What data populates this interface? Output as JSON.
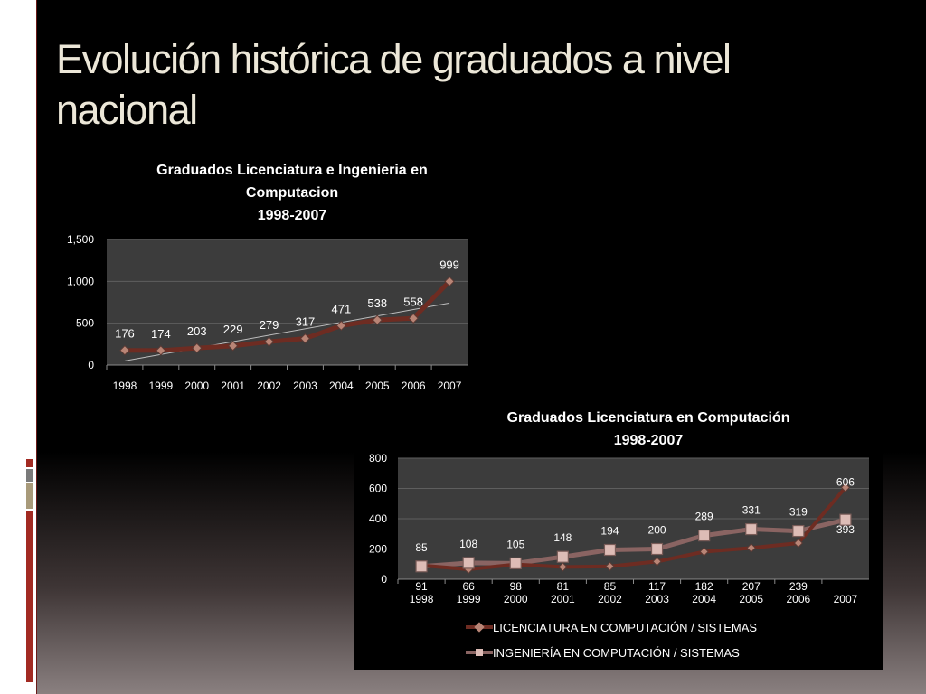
{
  "slide": {
    "title": "Evolución histórica de graduados a nivel nacional"
  },
  "colors": {
    "plot_bg": "#3c3c3c",
    "gridline": "#5e5e5e",
    "axis_text": "#ffffff",
    "series_dark": "#6e2c22",
    "series_light": "#8a6462",
    "marker_dark": "#b98576",
    "marker_light": "#ddbcb6",
    "trendline": "#bdbdbd",
    "accent_red": "#a22a22",
    "accent_gray": "#7a7a7a",
    "accent_tan": "#a89a7a"
  },
  "chart_data": [
    {
      "type": "line",
      "title_lines": [
        "Graduados Licenciatura e Ingenieria en",
        "Computacion",
        "1998-2007"
      ],
      "categories": [
        "1998",
        "1999",
        "2000",
        "2001",
        "2002",
        "2003",
        "2004",
        "2005",
        "2006",
        "2007"
      ],
      "series": [
        {
          "name": "",
          "values": [
            176,
            174,
            203,
            229,
            279,
            317,
            471,
            538,
            558,
            999
          ]
        }
      ],
      "trendline": {
        "type": "linear",
        "from": 50,
        "to": 740
      },
      "yticks": [
        "0",
        "500",
        "1,000",
        "1,500"
      ],
      "ylim": [
        0,
        1500
      ],
      "data_labels": [
        "176",
        "174",
        "203",
        "229",
        "279",
        "317",
        "471",
        "538",
        "558",
        "999"
      ],
      "grid": true,
      "legend": "none"
    },
    {
      "type": "line",
      "title_lines": [
        "Graduados Licenciatura en Computación",
        "1998-2007"
      ],
      "categories": [
        "1998",
        "1999",
        "2000",
        "2001",
        "2002",
        "2003",
        "2004",
        "2005",
        "2006",
        "2007"
      ],
      "series": [
        {
          "name": "LICENCIATURA EN COMPUTACIÓN / SISTEMAS",
          "values": [
            91,
            66,
            98,
            81,
            85,
            117,
            182,
            207,
            239,
            606
          ]
        },
        {
          "name": "INGENIERÍA EN COMPUTACIÓN / SISTEMAS",
          "values": [
            85,
            108,
            105,
            148,
            194,
            200,
            289,
            331,
            319,
            393
          ]
        }
      ],
      "yticks": [
        "0",
        "200",
        "400",
        "600",
        "800"
      ],
      "ylim": [
        0,
        800
      ],
      "grid": true,
      "legend": "bottom"
    }
  ]
}
